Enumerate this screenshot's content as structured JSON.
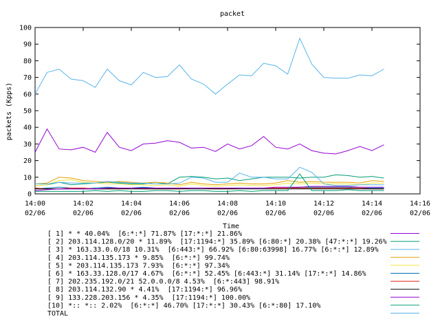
{
  "chart_data": {
    "type": "line",
    "title": "packet",
    "xlabel": "Time",
    "ylabel": "packets (Kpps)",
    "ylim": [
      0,
      100
    ],
    "yticks": [
      0,
      10,
      20,
      30,
      40,
      50,
      60,
      70,
      80,
      90,
      100
    ],
    "xlim": [
      "14:00",
      "14:16"
    ],
    "xticks": [
      {
        "time": "14:00",
        "date": "02/06"
      },
      {
        "time": "14:02",
        "date": "02/06"
      },
      {
        "time": "14:04",
        "date": "02/06"
      },
      {
        "time": "14:06",
        "date": "02/06"
      },
      {
        "time": "14:08",
        "date": "02/06"
      },
      {
        "time": "14:10",
        "date": "02/06"
      },
      {
        "time": "14:12",
        "date": "02/06"
      },
      {
        "time": "14:14",
        "date": "02/06"
      },
      {
        "time": "14:16",
        "date": "02/06"
      }
    ],
    "x": [
      "14:00",
      "14:00:30",
      "14:01",
      "14:01:30",
      "14:02",
      "14:02:30",
      "14:03",
      "14:03:30",
      "14:04",
      "14:04:30",
      "14:05",
      "14:05:30",
      "14:06",
      "14:06:30",
      "14:07",
      "14:07:30",
      "14:08",
      "14:08:30",
      "14:09",
      "14:09:30",
      "14:10",
      "14:10:30",
      "14:11",
      "14:11:30",
      "14:12",
      "14:12:30",
      "14:13",
      "14:13:30",
      "14:14",
      "14:14:30"
    ],
    "grid": false,
    "legend_placement": "bottom",
    "series": [
      {
        "name": "[ 1] * * 40.04%  [6:*:*] 71.87% [17:*:*] 21.86%",
        "color": "#9400d3",
        "values": [
          25,
          39,
          27,
          26.5,
          28,
          25,
          37,
          28,
          26,
          30,
          30.5,
          32,
          31,
          27.5,
          28,
          25.5,
          30,
          27,
          29,
          34.5,
          28,
          27,
          30,
          26,
          24.5,
          24,
          26,
          28.5,
          26,
          29.5
        ]
      },
      {
        "name": "[ 2] 203.114.128.0/20 * 11.89%  [17:1194:*] 35.89% [6:80:*] 20.38% [47:*:*] 19.26%",
        "color": "#009e73",
        "values": [
          5,
          5.5,
          7,
          5.5,
          6,
          6.5,
          7,
          6.5,
          6,
          6,
          7,
          6,
          10,
          10.5,
          10,
          9,
          9.5,
          8,
          9,
          10,
          10,
          10,
          9.5,
          10,
          10,
          11.5,
          11,
          10,
          10.5,
          9.5
        ]
      },
      {
        "name": "[ 3] * 163.33.0.0/18 10.31%  [6:443:*] 66.92% [6:80:63998] 16.77% [6:*:*] 12.89%",
        "color": "#56b4e9",
        "values": [
          60,
          73,
          75,
          69,
          68,
          64,
          75,
          68,
          65.5,
          73,
          70,
          70.5,
          77.5,
          69,
          66,
          60,
          66,
          71.5,
          71,
          78.5,
          77,
          72,
          93.5,
          78,
          70,
          69.5,
          69.5,
          71.5,
          71,
          75
        ]
      },
      {
        "name": "[ 4] 203.114.135.173 * 9.85%  [6:*:*] 99.74%",
        "color": "#e69f00",
        "values": [
          6,
          6.5,
          10,
          9.5,
          8,
          7.5,
          7,
          7.5,
          7,
          6.5,
          7,
          6.5,
          5.5,
          7,
          6,
          5.5,
          6,
          6.5,
          6,
          6,
          6.5,
          8,
          7,
          7.5,
          7,
          7,
          7,
          6.5,
          8,
          7.5
        ]
      },
      {
        "name": "[ 5] * 203.114.135.173 7.93%  [6:*:*] 97.34%",
        "color": "#f0e442",
        "values": [
          5,
          5.5,
          8,
          8.5,
          7,
          6.5,
          6,
          6,
          5.5,
          5.5,
          5,
          5.5,
          4.5,
          6,
          5,
          4.5,
          5,
          5.5,
          5,
          5,
          5.5,
          6.5,
          6,
          6.5,
          6,
          6,
          6,
          5.5,
          6.5,
          6.5
        ]
      },
      {
        "name": "[ 6] * 163.33.128.0/17 4.67%  [6:*:*] 52.45% [6:443:*] 31.14% [17:*:*] 14.86%",
        "color": "#0072b2",
        "values": [
          3,
          3.5,
          4,
          3.5,
          3,
          3.5,
          4,
          3.5,
          3.5,
          4,
          3.5,
          3.5,
          3.5,
          3.5,
          3.5,
          3.5,
          3.5,
          3.5,
          3.5,
          3.5,
          3.5,
          3.5,
          4,
          4,
          4,
          4,
          4,
          3.5,
          3.5,
          3.5
        ]
      },
      {
        "name": "[ 7] 202.235.192.0/21 52.0.0.0/8 4.53%  [6:*:443] 98.91%",
        "color": "#e51e10",
        "values": [
          3.5,
          3,
          3,
          3.5,
          3.5,
          3,
          3,
          3,
          3.5,
          3,
          3,
          3,
          3,
          3.5,
          3.5,
          3,
          3,
          3.5,
          3.5,
          3.5,
          3.5,
          3.5,
          3.5,
          3.5,
          3.5,
          3.5,
          3.5,
          3.5,
          3,
          3
        ]
      },
      {
        "name": "[ 8] 203.114.132.90 * 4.41%  [17:1194:*] 96.96%",
        "color": "#000000",
        "values": [
          3,
          3,
          3,
          3,
          3,
          3,
          3,
          3,
          3,
          3,
          3,
          3,
          3,
          3,
          3,
          3,
          3,
          3,
          3,
          3,
          3,
          3,
          3,
          3,
          3,
          3,
          3,
          3,
          3,
          3
        ]
      },
      {
        "name": "[ 9] 133.228.203.156 * 4.35%  [17:1194:*] 100.00%",
        "color": "#9400d3",
        "values": [
          2,
          2.5,
          3,
          3,
          3,
          3,
          3.5,
          3.5,
          3.5,
          3.5,
          3.5,
          3.5,
          3.5,
          3.5,
          3.5,
          3.5,
          3.5,
          3.5,
          3.5,
          3.5,
          4,
          4,
          4,
          4.5,
          4.5,
          4.5,
          4.5,
          4,
          4,
          4
        ]
      },
      {
        "name": "[10] *:: *:: 2.02%  [6:*:*] 46.70% [17:*:*] 30.43% [6:*:80] 17.10%",
        "color": "#009e73",
        "values": [
          1.5,
          1.5,
          1.5,
          1.5,
          1.5,
          2,
          1.5,
          2,
          1.5,
          1.5,
          2,
          2,
          1.5,
          2,
          2,
          1.5,
          1.5,
          2,
          1.5,
          2,
          2,
          2,
          12,
          2,
          2,
          2,
          2.5,
          2,
          2,
          2
        ]
      },
      {
        "name": "TOTAL",
        "color": "#56b4e9",
        "values": [
          6,
          6,
          7,
          6.5,
          6.5,
          6.5,
          7.5,
          7,
          6.5,
          6.5,
          6,
          6,
          6.5,
          10,
          9.5,
          7,
          7,
          12.5,
          10,
          10,
          9,
          9,
          16,
          13,
          6,
          5,
          5,
          5.5,
          5.5,
          5.5
        ]
      }
    ]
  }
}
